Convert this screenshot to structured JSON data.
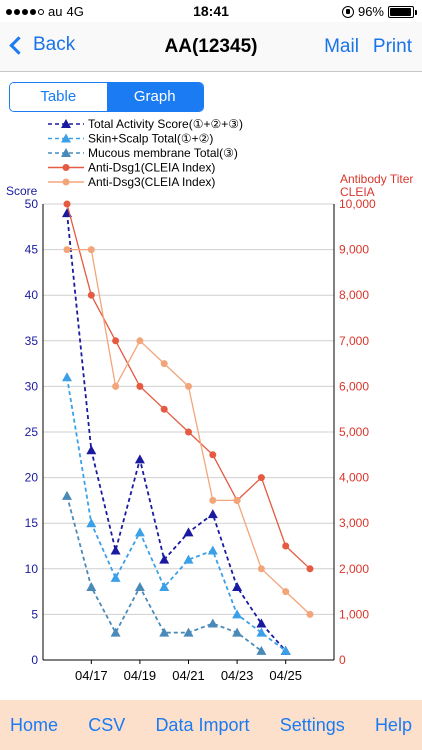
{
  "status_bar": {
    "carrier": "au",
    "network": "4G",
    "time": "18:41",
    "battery": "96%",
    "battery_level": 0.96,
    "signal_bars_filled": 4,
    "signal_bars_total": 5
  },
  "nav": {
    "back_label": "Back",
    "title": "AA(12345)",
    "mail_label": "Mail",
    "print_label": "Print"
  },
  "segment": {
    "table_label": "Table",
    "graph_label": "Graph",
    "selected": "Graph"
  },
  "tab_bar": {
    "items": [
      "Home",
      "CSV",
      "Data Import",
      "Settings",
      "Help"
    ]
  },
  "colors": {
    "accent": "#1a7bf2",
    "score_axis": "#1a1aa0",
    "titer_axis": "#d9362b",
    "tab_bar_bg": "#fde0cc"
  },
  "chart_data": {
    "type": "line",
    "left_axis_label": "Score",
    "right_axis_label_1": "Antibody Titer",
    "right_axis_label_2": "CLEIA",
    "left_ylim": [
      0,
      50
    ],
    "left_ticks": [
      "0",
      "5",
      "10",
      "15",
      "20",
      "25",
      "30",
      "35",
      "40",
      "45",
      "50"
    ],
    "right_ylim": [
      0,
      10000
    ],
    "right_ticks": [
      "0",
      "1,000",
      "2,000",
      "3,000",
      "4,000",
      "5,000",
      "6,000",
      "7,000",
      "8,000",
      "9,000",
      "10,000"
    ],
    "x_tick_labels": [
      "04/17",
      "04/19",
      "04/21",
      "04/23",
      "04/25"
    ],
    "x_tick_index": [
      1,
      3,
      5,
      7,
      9
    ],
    "x_count": 11,
    "grid": true,
    "legend_position": "top-left",
    "series": [
      {
        "name": "Total Activity Score(①+②+③)",
        "axis": "left",
        "color": "#1a1aa0",
        "style": "dashed",
        "marker": "triangle",
        "points": [
          [
            0,
            49
          ],
          [
            1,
            23
          ],
          [
            2,
            12
          ],
          [
            3,
            22
          ],
          [
            4,
            11
          ],
          [
            5,
            14
          ],
          [
            6,
            16
          ],
          [
            7,
            8
          ],
          [
            8,
            4
          ],
          [
            9,
            1
          ]
        ]
      },
      {
        "name": "Skin+Scalp Total(①+②)",
        "axis": "left",
        "color": "#3aa0e8",
        "style": "dashed",
        "marker": "triangle",
        "points": [
          [
            0,
            31
          ],
          [
            1,
            15
          ],
          [
            2,
            9
          ],
          [
            3,
            14
          ],
          [
            4,
            8
          ],
          [
            5,
            11
          ],
          [
            6,
            12
          ],
          [
            7,
            5
          ],
          [
            8,
            3
          ],
          [
            9,
            1
          ]
        ]
      },
      {
        "name": "Mucous membrane Total(③)",
        "axis": "left",
        "color": "#4a8ab8",
        "style": "dashed",
        "marker": "triangle",
        "points": [
          [
            0,
            18
          ],
          [
            1,
            8
          ],
          [
            2,
            3
          ],
          [
            3,
            8
          ],
          [
            4,
            3
          ],
          [
            5,
            3
          ],
          [
            6,
            4
          ],
          [
            7,
            3
          ],
          [
            8,
            1
          ]
        ]
      },
      {
        "name": "Anti-Dsg1(CLEIA Index)",
        "axis": "right",
        "color": "#e55a40",
        "style": "solid",
        "marker": "circle",
        "points": [
          [
            0,
            10000
          ],
          [
            1,
            8000
          ],
          [
            2,
            7000
          ],
          [
            3,
            6000
          ],
          [
            4,
            5500
          ],
          [
            5,
            5000
          ],
          [
            6,
            4500
          ],
          [
            7,
            3500
          ],
          [
            8,
            4000
          ],
          [
            9,
            2500
          ],
          [
            10,
            2000
          ]
        ]
      },
      {
        "name": "Anti-Dsg3(CLEIA Index)",
        "axis": "right",
        "color": "#f3a57a",
        "style": "solid",
        "marker": "circle",
        "points": [
          [
            0,
            9000
          ],
          [
            1,
            9000
          ],
          [
            2,
            6000
          ],
          [
            3,
            7000
          ],
          [
            4,
            6500
          ],
          [
            5,
            6000
          ],
          [
            6,
            3500
          ],
          [
            7,
            3500
          ],
          [
            8,
            2000
          ],
          [
            9,
            1500
          ],
          [
            10,
            1000
          ]
        ]
      }
    ]
  }
}
